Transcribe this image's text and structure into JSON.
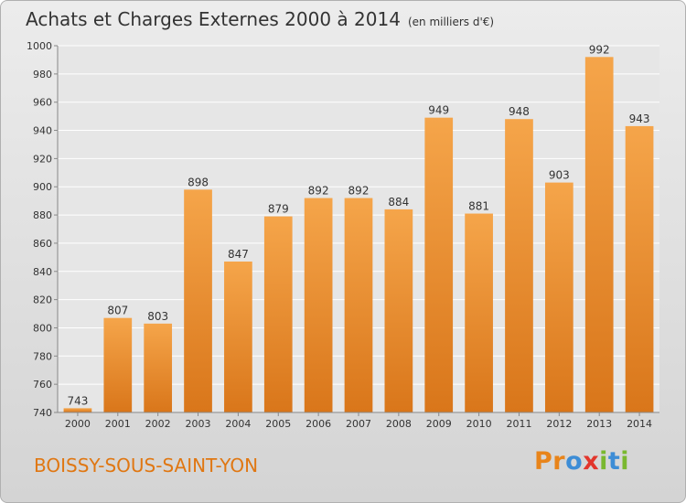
{
  "header": {
    "title": "Achats et Charges Externes 2000 à 2014",
    "subtitle": "(en milliers d'€)"
  },
  "footer": {
    "place": "BOISSY-SOUS-SAINT-YON",
    "logo": [
      "P",
      "r",
      "o",
      "x",
      "i",
      "t",
      "i"
    ]
  },
  "colors": {
    "bar_top": "#f5a54a",
    "bar_bottom": "#d9761a",
    "place_text": "#e07712",
    "grid": "#ffffff"
  },
  "chart_data": {
    "type": "bar",
    "title": "Achats et Charges Externes 2000 à 2014",
    "subtitle": "(en milliers d'€)",
    "xlabel": "",
    "ylabel": "",
    "categories": [
      "2000",
      "2001",
      "2002",
      "2003",
      "2004",
      "2005",
      "2006",
      "2007",
      "2008",
      "2009",
      "2010",
      "2011",
      "2012",
      "2013",
      "2014"
    ],
    "values": [
      743,
      807,
      803,
      898,
      847,
      879,
      892,
      892,
      884,
      949,
      881,
      948,
      903,
      992,
      943
    ],
    "ylim": [
      740,
      1000
    ],
    "yticks": [
      740,
      760,
      780,
      800,
      820,
      840,
      860,
      880,
      900,
      920,
      940,
      960,
      980,
      1000
    ],
    "grid": true,
    "data_labels": true
  }
}
